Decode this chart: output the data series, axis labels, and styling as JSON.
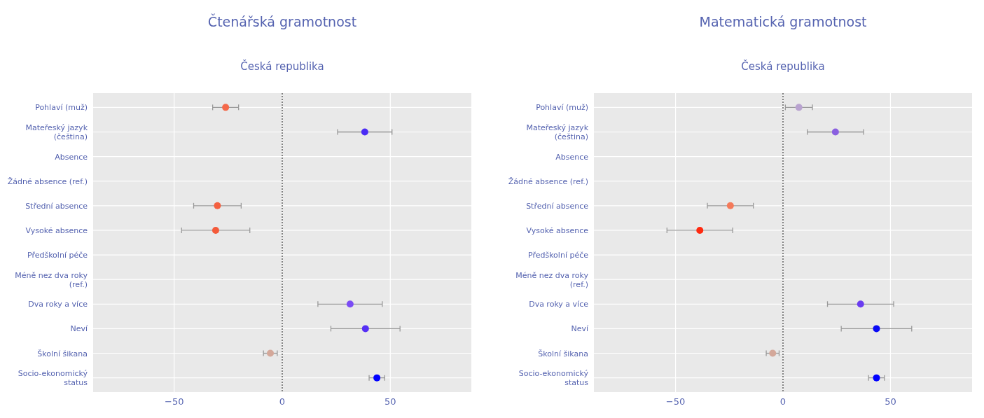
{
  "chart_data": [
    {
      "type": "scatter",
      "orientation": "horizontal",
      "title": "Čtenářská gramotnost",
      "subtitle": "Česká republika",
      "categories": [
        "Pohlaví (muž)",
        "Mateřeský jazyk (čeština)",
        "Absence",
        "Žádné absence (ref.)",
        "Střední absence",
        "Vysoké absence",
        "Předškolní péče",
        "Méně nez dva roky (ref.)",
        "Dva roky a více",
        "Neví",
        "Školní šikana",
        "Socio-ekonomický status"
      ],
      "values": [
        -26.2,
        38.2,
        null,
        null,
        -30.0,
        -30.8,
        null,
        null,
        31.4,
        38.5,
        -5.5,
        43.8
      ],
      "errors": [
        6.0,
        12.6,
        null,
        null,
        11.0,
        15.8,
        null,
        null,
        14.9,
        16.0,
        3.2,
        3.6
      ],
      "colors": [
        "#f4694a",
        "#4b2cf5",
        null,
        null,
        "#f46040",
        "#f45a3a",
        null,
        null,
        "#7b4cf5",
        "#5630f5",
        "#d4a89a",
        "#0000ff"
      ],
      "xlim": [
        -87.5,
        87.5
      ],
      "xticks": [
        -50,
        0,
        50
      ],
      "grid": true,
      "marker": "circle",
      "ref_lines": [
        {
          "axis": "x",
          "value": 0,
          "line_style": "dotted",
          "color": "#444444"
        }
      ]
    },
    {
      "type": "scatter",
      "orientation": "horizontal",
      "title": "Matematická gramotnost",
      "subtitle": "Česká republika",
      "categories": [
        "Pohlaví (muž)",
        "Mateřeský jazyk (čeština)",
        "Absence",
        "Žádné absence (ref.)",
        "Střední absence",
        "Vysoké absence",
        "Předškolní péče",
        "Méně nez dva roky (ref.)",
        "Dva roky a více",
        "Neví",
        "Školní šikana",
        "Socio-ekonomický status"
      ],
      "values": [
        7.4,
        24.4,
        null,
        null,
        -24.5,
        -38.7,
        null,
        null,
        36.1,
        43.5,
        -4.8,
        43.5
      ],
      "errors": [
        6.3,
        13.1,
        null,
        null,
        10.7,
        15.3,
        null,
        null,
        15.4,
        16.4,
        3.0,
        3.7
      ],
      "colors": [
        "#b9a3d0",
        "#8a60e0",
        null,
        null,
        "#f47a5a",
        "#ff2a10",
        null,
        null,
        "#6a3cf0",
        "#0a0af5",
        "#d4a89a",
        "#0000ff"
      ],
      "xlim": [
        -88,
        88
      ],
      "xticks": [
        -50,
        0,
        50
      ],
      "grid": true,
      "marker": "circle",
      "ref_lines": [
        {
          "axis": "x",
          "value": 0,
          "line_style": "dotted",
          "color": "#444444"
        }
      ]
    }
  ]
}
